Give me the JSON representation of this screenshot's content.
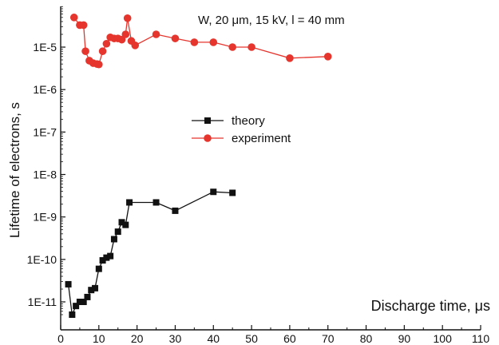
{
  "chart_data": {
    "type": "scatter",
    "title": "",
    "annotation": "W, 20 μm,  15 kV,  l = 40 mm",
    "xlabel": "Discharge time, μs",
    "ylabel": "Lifetime of electrons, s",
    "xscale": "linear",
    "yscale": "log",
    "xlim": [
      0,
      110
    ],
    "ylim": [
      5e-12,
      0.0001
    ],
    "x_ticks": [
      0,
      10,
      20,
      30,
      40,
      50,
      60,
      70,
      80,
      90,
      100,
      110
    ],
    "x_tick_labels": [
      "0",
      "10",
      "20",
      "30",
      "40",
      "50",
      "60",
      "70",
      "80",
      "90",
      "100",
      "110"
    ],
    "y_ticks": [
      1e-11,
      1e-10,
      1e-09,
      1e-08,
      1e-07,
      1e-06,
      1e-05
    ],
    "y_tick_labels": [
      "1E-11",
      "1E-10",
      "1E-9",
      "1E-8",
      "1E-7",
      "1E-6",
      "1E-5"
    ],
    "grid": false,
    "legend_position": "center",
    "series": [
      {
        "name": "theory",
        "color": "#111111",
        "marker": "square",
        "line": true,
        "x": [
          2,
          3,
          4,
          5,
          6,
          7,
          8,
          9,
          10,
          11,
          12,
          13,
          14,
          15,
          16,
          17,
          18,
          25,
          30,
          40,
          45
        ],
        "y": [
          2.6e-11,
          5e-12,
          8e-12,
          1e-11,
          1e-11,
          1.3e-11,
          1.9e-11,
          2.1e-11,
          6e-11,
          9.5e-11,
          1.1e-10,
          1.2e-10,
          3e-10,
          4.5e-10,
          7.5e-10,
          6.5e-10,
          2.2e-09,
          2.2e-09,
          1.4e-09,
          3.9e-09,
          3.7e-09
        ]
      },
      {
        "name": "experiment",
        "color": "#e5352d",
        "marker": "circle",
        "line": true,
        "x": [
          3.5,
          5,
          6,
          6.5,
          7.5,
          8.5,
          9.5,
          10,
          11,
          12,
          13,
          14,
          15,
          16,
          17,
          17.5,
          18.5,
          19.5,
          25,
          30,
          35,
          40,
          45,
          50,
          60,
          70
        ],
        "y": [
          5e-05,
          3.3e-05,
          3.3e-05,
          8e-06,
          4.8e-06,
          4.2e-06,
          4e-06,
          3.9e-06,
          8e-06,
          1.2e-05,
          1.7e-05,
          1.6e-05,
          1.6e-05,
          1.5e-05,
          2e-05,
          4.8e-05,
          1.4e-05,
          1.1e-05,
          2e-05,
          1.6e-05,
          1.3e-05,
          1.3e-05,
          1e-05,
          1e-05,
          5.5e-06,
          6e-06
        ]
      }
    ]
  }
}
